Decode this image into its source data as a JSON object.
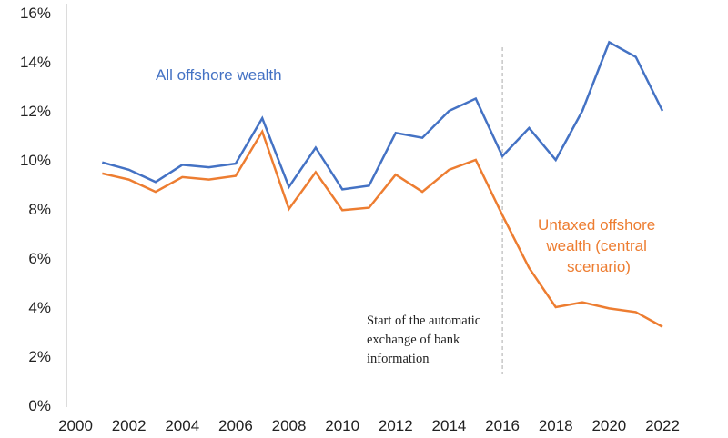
{
  "chart_data": {
    "type": "line",
    "title": "",
    "xlabel": "",
    "ylabel": "",
    "xlim": [
      2000,
      2022
    ],
    "ylim": [
      0,
      16
    ],
    "grid": false,
    "x_ticks": [
      "2000",
      "2002",
      "2004",
      "2006",
      "2008",
      "2010",
      "2012",
      "2014",
      "2016",
      "2018",
      "2020",
      "2022"
    ],
    "y_ticks": [
      "0%",
      "2%",
      "4%",
      "6%",
      "8%",
      "10%",
      "12%",
      "14%",
      "16%"
    ],
    "x": [
      2001,
      2002,
      2003,
      2004,
      2005,
      2006,
      2007,
      2008,
      2009,
      2010,
      2011,
      2012,
      2013,
      2014,
      2015,
      2016,
      2017,
      2018,
      2019,
      2020,
      2021,
      2022
    ],
    "series": [
      {
        "name": "All offshore wealth",
        "color": "#4472C4",
        "values": [
          9.9,
          9.6,
          9.1,
          9.8,
          9.7,
          9.85,
          11.7,
          8.9,
          10.5,
          8.8,
          8.95,
          11.1,
          10.9,
          12.0,
          12.5,
          10.15,
          11.3,
          10.0,
          12.0,
          14.8,
          14.2,
          12.0
        ]
      },
      {
        "name": "Untaxed offshore wealth (central scenario)",
        "color": "#ED7D31",
        "values": [
          9.45,
          9.2,
          8.7,
          9.3,
          9.2,
          9.35,
          11.15,
          8.0,
          9.5,
          7.95,
          8.05,
          9.4,
          8.7,
          9.6,
          10.0,
          7.75,
          5.6,
          4.0,
          4.2,
          3.95,
          3.8,
          3.2
        ]
      }
    ],
    "labels": {
      "blue": "All offshore wealth",
      "orange_lines": [
        "Untaxed offshore",
        "wealth (central",
        "scenario)"
      ]
    },
    "annotation": {
      "x": 2016,
      "lines": [
        "Start of the automatic",
        "exchange of bank",
        "information"
      ]
    }
  }
}
